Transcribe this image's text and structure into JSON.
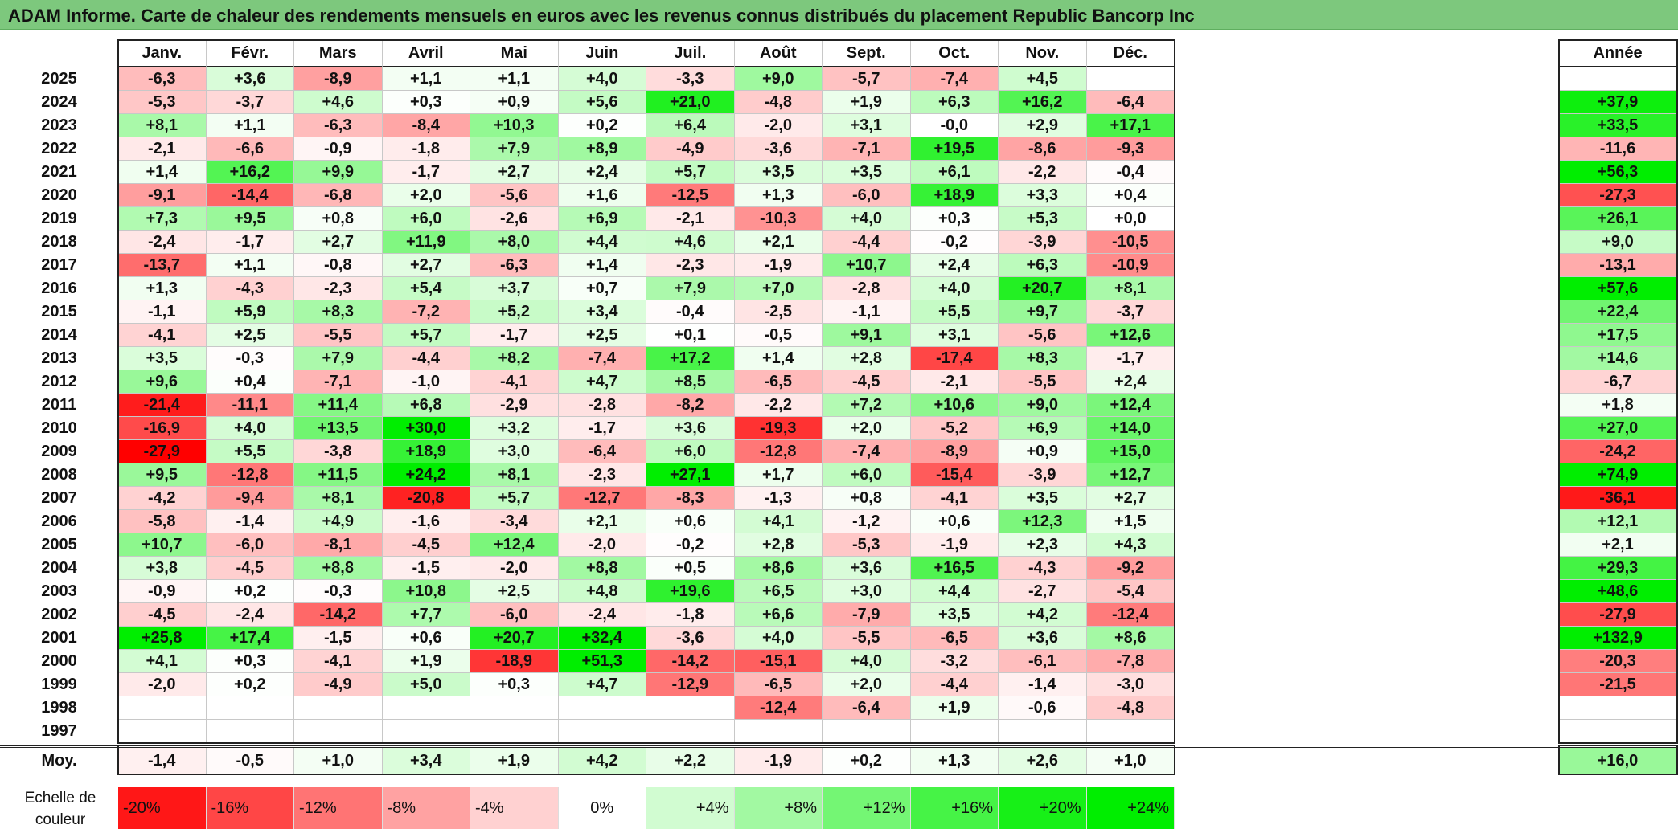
{
  "title": "ADAM Informe. Carte de chaleur des rendements mensuels en euros avec les revenus connus distribués du placement Republic Bancorp Inc",
  "chart_data": {
    "type": "heatmap",
    "title": "ADAM Informe. Carte de chaleur des rendements mensuels en euros avec les revenus connus distribués du placement Republic Bancorp Inc",
    "columns": [
      "Janv.",
      "Févr.",
      "Mars",
      "Avril",
      "Mai",
      "Juin",
      "Juil.",
      "Août",
      "Sept.",
      "Oct.",
      "Nov.",
      "Déc."
    ],
    "year_column": "Année",
    "rows": [
      {
        "year": "2025",
        "values": [
          "-6,3",
          "+3,6",
          "-8,9",
          "+1,1",
          "+1,1",
          "+4,0",
          "-3,3",
          "+9,0",
          "-5,7",
          "-7,4",
          "+4,5",
          ""
        ],
        "annual": ""
      },
      {
        "year": "2024",
        "values": [
          "-5,3",
          "-3,7",
          "+4,6",
          "+0,3",
          "+0,9",
          "+5,6",
          "+21,0",
          "-4,8",
          "+1,9",
          "+6,3",
          "+16,2",
          "-6,4"
        ],
        "annual": "+37,9"
      },
      {
        "year": "2023",
        "values": [
          "+8,1",
          "+1,1",
          "-6,3",
          "-8,4",
          "+10,3",
          "+0,2",
          "+6,4",
          "-2,0",
          "+3,1",
          "-0,0",
          "+2,9",
          "+17,1"
        ],
        "annual": "+33,5"
      },
      {
        "year": "2022",
        "values": [
          "-2,1",
          "-6,6",
          "-0,9",
          "-1,8",
          "+7,9",
          "+8,9",
          "-4,9",
          "-3,6",
          "-7,1",
          "+19,5",
          "-8,6",
          "-9,3"
        ],
        "annual": "-11,6"
      },
      {
        "year": "2021",
        "values": [
          "+1,4",
          "+16,2",
          "+9,9",
          "-1,7",
          "+2,7",
          "+2,4",
          "+5,7",
          "+3,5",
          "+3,5",
          "+6,1",
          "-2,2",
          "-0,4"
        ],
        "annual": "+56,3"
      },
      {
        "year": "2020",
        "values": [
          "-9,1",
          "-14,4",
          "-6,8",
          "+2,0",
          "-5,6",
          "+1,6",
          "-12,5",
          "+1,3",
          "-6,0",
          "+18,9",
          "+3,3",
          "+0,4"
        ],
        "annual": "-27,3"
      },
      {
        "year": "2019",
        "values": [
          "+7,3",
          "+9,5",
          "+0,8",
          "+6,0",
          "-2,6",
          "+6,9",
          "-2,1",
          "-10,3",
          "+4,0",
          "+0,3",
          "+5,3",
          "+0,0"
        ],
        "annual": "+26,1"
      },
      {
        "year": "2018",
        "values": [
          "-2,4",
          "-1,7",
          "+2,7",
          "+11,9",
          "+8,0",
          "+4,4",
          "+4,6",
          "+2,1",
          "-4,4",
          "-0,2",
          "-3,9",
          "-10,5"
        ],
        "annual": "+9,0"
      },
      {
        "year": "2017",
        "values": [
          "-13,7",
          "+1,1",
          "-0,8",
          "+2,7",
          "-6,3",
          "+1,4",
          "-2,3",
          "-1,9",
          "+10,7",
          "+2,4",
          "+6,3",
          "-10,9"
        ],
        "annual": "-13,1"
      },
      {
        "year": "2016",
        "values": [
          "+1,3",
          "-4,3",
          "-2,3",
          "+5,4",
          "+3,7",
          "+0,7",
          "+7,9",
          "+7,0",
          "-2,8",
          "+4,0",
          "+20,7",
          "+8,1"
        ],
        "annual": "+57,6"
      },
      {
        "year": "2015",
        "values": [
          "-1,1",
          "+5,9",
          "+8,3",
          "-7,2",
          "+5,2",
          "+3,4",
          "-0,4",
          "-2,5",
          "-1,1",
          "+5,5",
          "+9,7",
          "-3,7"
        ],
        "annual": "+22,4"
      },
      {
        "year": "2014",
        "values": [
          "-4,1",
          "+2,5",
          "-5,5",
          "+5,7",
          "-1,7",
          "+2,5",
          "+0,1",
          "-0,5",
          "+9,1",
          "+3,1",
          "-5,6",
          "+12,6"
        ],
        "annual": "+17,5"
      },
      {
        "year": "2013",
        "values": [
          "+3,5",
          "-0,3",
          "+7,9",
          "-4,4",
          "+8,2",
          "-7,4",
          "+17,2",
          "+1,4",
          "+2,8",
          "-17,4",
          "+8,3",
          "-1,7"
        ],
        "annual": "+14,6"
      },
      {
        "year": "2012",
        "values": [
          "+9,6",
          "+0,4",
          "-7,1",
          "-1,0",
          "-4,1",
          "+4,7",
          "+8,5",
          "-6,5",
          "-4,5",
          "-2,1",
          "-5,5",
          "+2,4"
        ],
        "annual": "-6,7"
      },
      {
        "year": "2011",
        "values": [
          "-21,4",
          "-11,1",
          "+11,4",
          "+6,8",
          "-2,9",
          "-2,8",
          "-8,2",
          "-2,2",
          "+7,2",
          "+10,6",
          "+9,0",
          "+12,4"
        ],
        "annual": "+1,8"
      },
      {
        "year": "2010",
        "values": [
          "-16,9",
          "+4,0",
          "+13,5",
          "+30,0",
          "+3,2",
          "-1,7",
          "+3,6",
          "-19,3",
          "+2,0",
          "-5,2",
          "+6,9",
          "+14,0"
        ],
        "annual": "+27,0"
      },
      {
        "year": "2009",
        "values": [
          "-27,9",
          "+5,5",
          "-3,8",
          "+18,9",
          "+3,0",
          "-6,4",
          "+6,0",
          "-12,8",
          "-7,4",
          "-8,9",
          "+0,9",
          "+15,0"
        ],
        "annual": "-24,2"
      },
      {
        "year": "2008",
        "values": [
          "+9,5",
          "-12,8",
          "+11,5",
          "+24,2",
          "+8,1",
          "-2,3",
          "+27,1",
          "+1,7",
          "+6,0",
          "-15,4",
          "-3,9",
          "+12,7"
        ],
        "annual": "+74,9"
      },
      {
        "year": "2007",
        "values": [
          "-4,2",
          "-9,4",
          "+8,1",
          "-20,8",
          "+5,7",
          "-12,7",
          "-8,3",
          "-1,3",
          "+0,8",
          "-4,1",
          "+3,5",
          "+2,7"
        ],
        "annual": "-36,1"
      },
      {
        "year": "2006",
        "values": [
          "-5,8",
          "-1,4",
          "+4,9",
          "-1,6",
          "-3,4",
          "+2,1",
          "+0,6",
          "+4,1",
          "-1,2",
          "+0,6",
          "+12,3",
          "+1,5"
        ],
        "annual": "+12,1"
      },
      {
        "year": "2005",
        "values": [
          "+10,7",
          "-6,0",
          "-8,1",
          "-4,5",
          "+12,4",
          "-2,0",
          "-0,2",
          "+2,8",
          "-5,3",
          "-1,9",
          "+2,3",
          "+4,3"
        ],
        "annual": "+2,1"
      },
      {
        "year": "2004",
        "values": [
          "+3,8",
          "-4,5",
          "+8,8",
          "-1,5",
          "-2,0",
          "+8,8",
          "+0,5",
          "+8,6",
          "+3,6",
          "+16,5",
          "-4,3",
          "-9,2"
        ],
        "annual": "+29,3"
      },
      {
        "year": "2003",
        "values": [
          "-0,9",
          "+0,2",
          "-0,3",
          "+10,8",
          "+2,5",
          "+4,8",
          "+19,6",
          "+6,5",
          "+3,0",
          "+4,4",
          "-2,7",
          "-5,4"
        ],
        "annual": "+48,6"
      },
      {
        "year": "2002",
        "values": [
          "-4,5",
          "-2,4",
          "-14,2",
          "+7,7",
          "-6,0",
          "-2,4",
          "-1,8",
          "+6,6",
          "-7,9",
          "+3,5",
          "+4,2",
          "-12,4"
        ],
        "annual": "-27,9"
      },
      {
        "year": "2001",
        "values": [
          "+25,8",
          "+17,4",
          "-1,5",
          "+0,6",
          "+20,7",
          "+32,4",
          "-3,6",
          "+4,0",
          "-5,5",
          "-6,5",
          "+3,6",
          "+8,6"
        ],
        "annual": "+132,9"
      },
      {
        "year": "2000",
        "values": [
          "+4,1",
          "+0,3",
          "-4,1",
          "+1,9",
          "-18,9",
          "+51,3",
          "-14,2",
          "-15,1",
          "+4,0",
          "-3,2",
          "-6,1",
          "-7,8"
        ],
        "annual": "-20,3"
      },
      {
        "year": "1999",
        "values": [
          "-2,0",
          "+0,2",
          "-4,9",
          "+5,0",
          "+0,3",
          "+4,7",
          "-12,9",
          "-6,5",
          "+2,0",
          "-4,4",
          "-1,4",
          "-3,0"
        ],
        "annual": "-21,5"
      },
      {
        "year": "1998",
        "values": [
          "",
          "",
          "",
          "",
          "",
          "",
          "",
          "-12,4",
          "-6,4",
          "+1,9",
          "-0,6",
          "-4,8"
        ],
        "annual": ""
      },
      {
        "year": "1997",
        "values": [
          "",
          "",
          "",
          "",
          "",
          "",
          "",
          "",
          "",
          "",
          "",
          ""
        ],
        "annual": ""
      }
    ],
    "average": {
      "label": "Moy.",
      "values": [
        "-1,4",
        "-0,5",
        "+1,0",
        "+3,4",
        "+1,9",
        "+4,2",
        "+2,2",
        "-1,9",
        "+0,2",
        "+1,3",
        "+2,6",
        "+1,0"
      ],
      "annual": "+16,0"
    },
    "scale": {
      "label": "Echelle de couleur",
      "steps": [
        "-20%",
        "-16%",
        "-12%",
        "-8%",
        "-4%",
        "0%",
        "+4%",
        "+8%",
        "+12%",
        "+16%",
        "+20%",
        "+24%"
      ]
    },
    "colors": {
      "negative": "#ff0000",
      "neutral": "#ffffff",
      "positive": "#00ee00",
      "title_bar": "#7dc87d"
    }
  }
}
